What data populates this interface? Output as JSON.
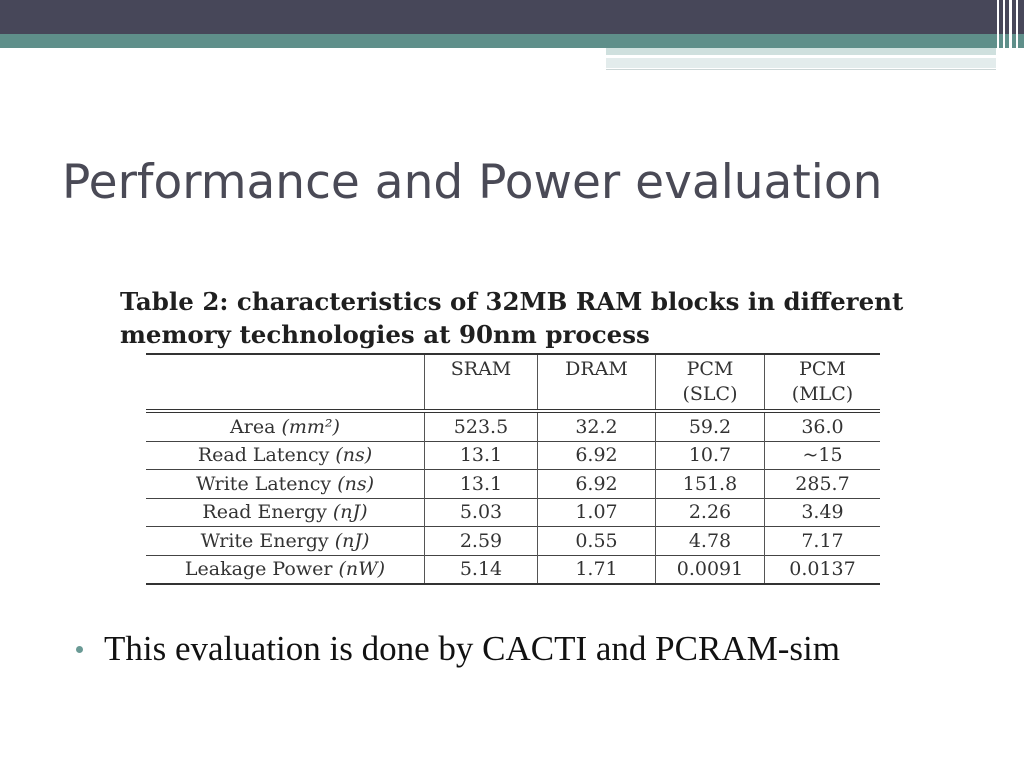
{
  "slide": {
    "title": "Performance and Power evaluation",
    "caption": "Table 2: characteristics of 32MB RAM blocks in different memory technologies at 90nm process",
    "bullet": "This evaluation is done by CACTI and PCRAM-sim"
  },
  "table": {
    "columns": [
      {
        "line1": "",
        "line2": ""
      },
      {
        "line1": "SRAM",
        "line2": ""
      },
      {
        "line1": "DRAM",
        "line2": ""
      },
      {
        "line1": "PCM",
        "line2": "(SLC)"
      },
      {
        "line1": "PCM",
        "line2": "(MLC)"
      }
    ],
    "rows": [
      {
        "metric": "Area",
        "unit": "(mm²)",
        "values": [
          "523.5",
          "32.2",
          "59.2",
          "36.0"
        ]
      },
      {
        "metric": "Read Latency",
        "unit": "(ns)",
        "values": [
          "13.1",
          "6.92",
          "10.7",
          "~15"
        ]
      },
      {
        "metric": "Write Latency",
        "unit": "(ns)",
        "values": [
          "13.1",
          "6.92",
          "151.8",
          "285.7"
        ]
      },
      {
        "metric": "Read Energy",
        "unit": "(nJ)",
        "values": [
          "5.03",
          "1.07",
          "2.26",
          "3.49"
        ]
      },
      {
        "metric": "Write Energy",
        "unit": "(nJ)",
        "values": [
          "2.59",
          "0.55",
          "4.78",
          "7.17"
        ]
      },
      {
        "metric": "Leakage Power",
        "unit": "(nW)",
        "values": [
          "5.14",
          "1.71",
          "0.0091",
          "0.0137"
        ]
      }
    ]
  },
  "theme": {
    "header_dark": "#474759",
    "header_teal": "#5f8f8a",
    "title_color": "#4a4a56",
    "bullet_color": "#6a9a95"
  }
}
